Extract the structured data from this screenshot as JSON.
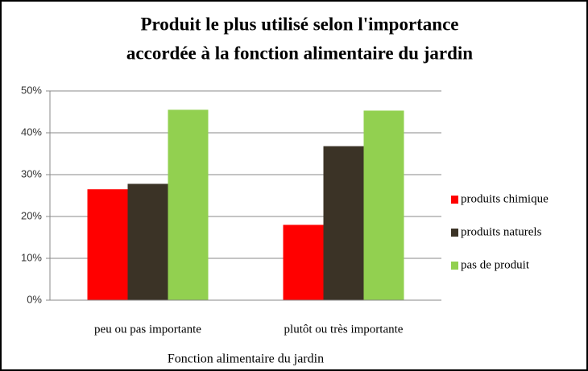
{
  "chart_data": {
    "type": "bar",
    "title": [
      "Produit le plus utilisé selon  l'importance",
      "accordée à la fonction alimentaire du jardin"
    ],
    "x_label": "Fonction alimentaire du jardin",
    "categories": [
      "peu ou pas importante",
      "plutôt ou très importante"
    ],
    "series": [
      {
        "name": "produits chimique",
        "color": "#ff0000",
        "values": [
          26.5,
          18
        ]
      },
      {
        "name": "produits naturels",
        "color": "#3b3326",
        "values": [
          27.8,
          36.8
        ]
      },
      {
        "name": "pas de produit",
        "color": "#92d050",
        "values": [
          45.5,
          45.3
        ]
      }
    ],
    "ylim": [
      0,
      50
    ],
    "yticks": [
      {
        "value": 0,
        "label": "0%"
      },
      {
        "value": 10,
        "label": "10%"
      },
      {
        "value": 20,
        "label": "20%"
      },
      {
        "value": 30,
        "label": "30%"
      },
      {
        "value": 40,
        "label": "40%"
      },
      {
        "value": 50,
        "label": "50%"
      }
    ],
    "grid": true,
    "legend": "right"
  }
}
